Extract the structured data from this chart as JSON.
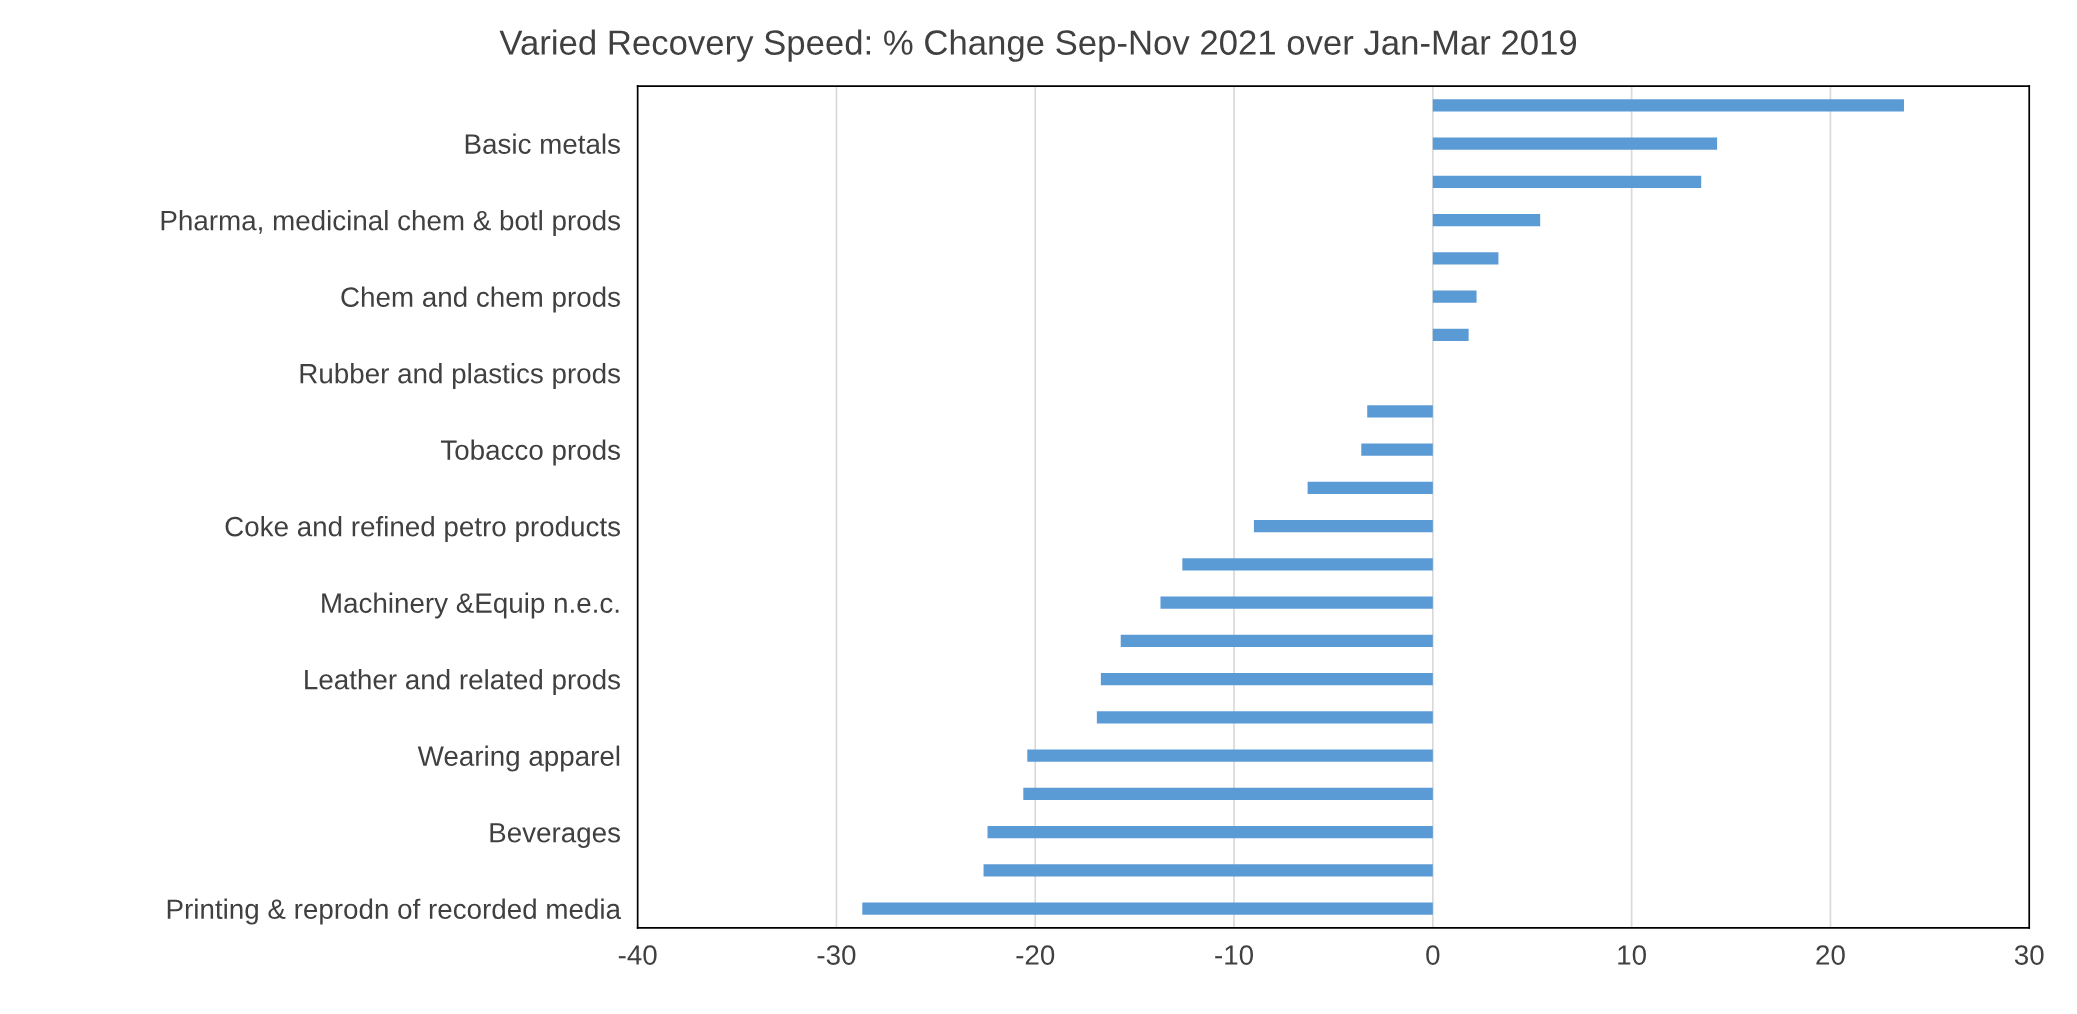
{
  "chart_data": {
    "type": "bar",
    "orientation": "horizontal",
    "title": "Varied Recovery Speed: % Change Sep-Nov 2021 over Jan-Mar 2019",
    "categories": [
      null,
      "Basic metals",
      null,
      "Pharma, medicinal chem & botl prods",
      null,
      "Chem and chem prods",
      null,
      "Rubber and plastics prods",
      null,
      "Tobacco prods",
      null,
      "Coke and refined petro products",
      null,
      "Machinery &Equip n.e.c.",
      null,
      "Leather and related prods",
      null,
      "Wearing apparel",
      null,
      "Beverages",
      null,
      "Printing & reprodn of recorded media"
    ],
    "values": [
      23.7,
      14.3,
      13.5,
      5.4,
      3.3,
      2.2,
      1.8,
      0,
      -3.3,
      -3.6,
      -6.3,
      -9.0,
      -12.6,
      -13.7,
      -15.7,
      -16.7,
      -16.9,
      -20.4,
      -20.6,
      -22.4,
      -22.6,
      -28.7
    ],
    "color": "#5b9bd5",
    "xlim": [
      -40,
      30
    ],
    "xticks": [
      -40,
      -30,
      -20,
      -10,
      0,
      10,
      20,
      30
    ],
    "grid": "x",
    "legend": false
  }
}
